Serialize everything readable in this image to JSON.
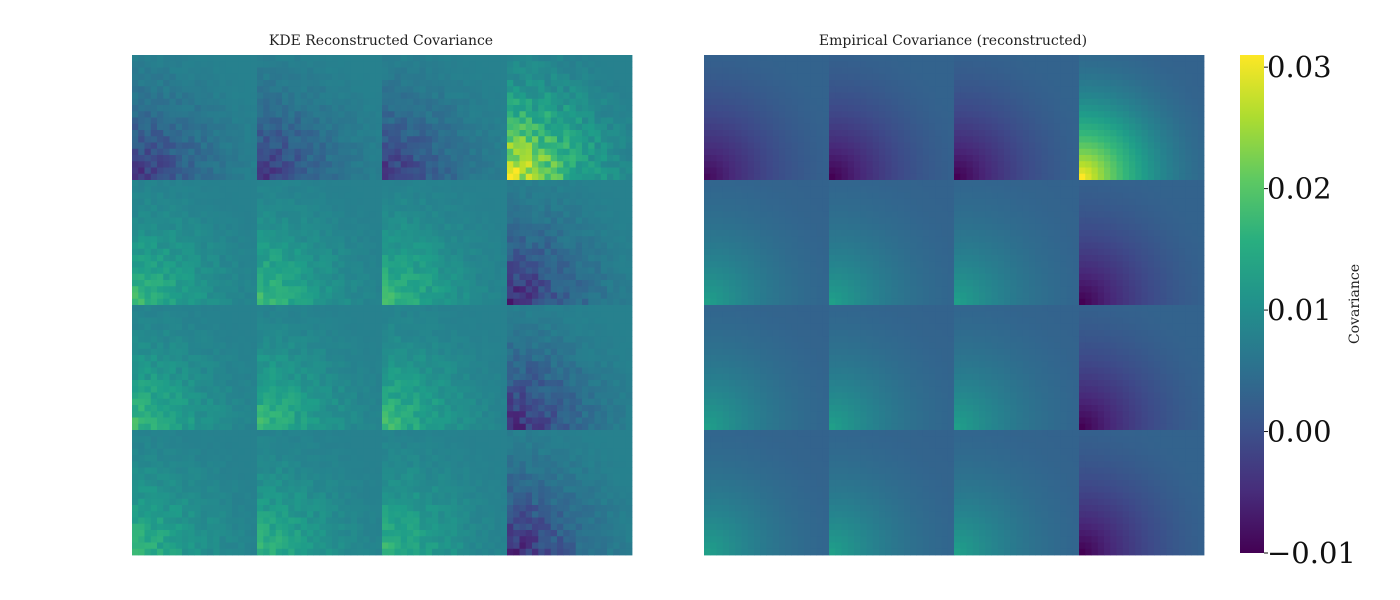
{
  "chart_data": [
    {
      "type": "heatmap",
      "title": "KDE Reconstructed Covariance",
      "grid": "4x4 blocks of 20x20 cells",
      "colormap": "viridis",
      "clim": [
        -0.01,
        0.031
      ],
      "block_pattern": "noisy quarter-circle gradient, strongest at bottom-left of each block",
      "block_peak_values": [
        [
          -0.004,
          -0.004,
          -0.004,
          0.031
        ],
        [
          0.018,
          0.018,
          0.018,
          -0.006
        ],
        [
          0.018,
          0.018,
          0.018,
          -0.006
        ],
        [
          0.017,
          0.017,
          0.017,
          -0.006
        ]
      ],
      "background_value": 0.008
    },
    {
      "type": "heatmap",
      "title": "Empirical Covariance (reconstructed)",
      "grid": "4x4 blocks of 20x20 cells",
      "colormap": "viridis",
      "clim": [
        -0.01,
        0.031
      ],
      "block_pattern": "smooth quarter-circle gradient, strongest at bottom-left of each block",
      "block_peak_values": [
        [
          -0.009,
          -0.01,
          -0.01,
          0.031
        ],
        [
          0.013,
          0.013,
          0.013,
          -0.01
        ],
        [
          0.013,
          0.013,
          0.013,
          -0.01
        ],
        [
          0.013,
          0.013,
          0.013,
          -0.01
        ]
      ],
      "background_value": 0.003
    }
  ],
  "colorbar": {
    "label": "Covariance",
    "min": -0.01,
    "max": 0.031,
    "ticks": [
      {
        "value": 0.03,
        "label": "0.03"
      },
      {
        "value": 0.02,
        "label": "0.02"
      },
      {
        "value": 0.01,
        "label": "0.01"
      },
      {
        "value": 0.0,
        "label": "0.00"
      },
      {
        "value": -0.01,
        "label": "−0.01"
      }
    ]
  }
}
